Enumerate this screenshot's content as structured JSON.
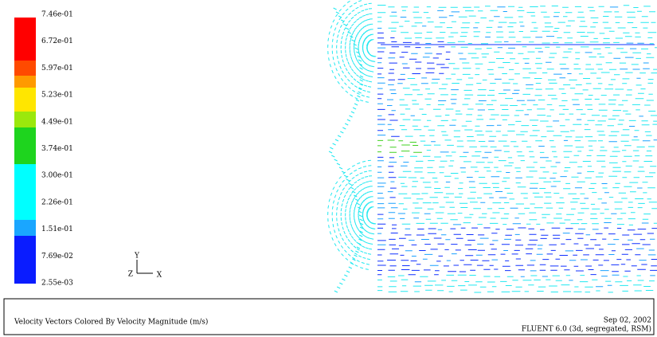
{
  "colorbar": {
    "labels": [
      "7.46e-01",
      "6.72e-01",
      "5.97e-01",
      "5.23e-01",
      "4.49e-01",
      "3.74e-01",
      "3.00e-01",
      "2.26e-01",
      "1.51e-01",
      "7.69e-02",
      "2.55e-03"
    ]
  },
  "axes_triad": {
    "y": "Y",
    "z": "Z",
    "x": "X"
  },
  "footer": {
    "caption": "Velocity Vectors Colored By Velocity Magnitude (m/s)",
    "date": "Sep 02, 2002",
    "version": "FLUENT 6.0 (3d, segregated, RSM)"
  }
}
